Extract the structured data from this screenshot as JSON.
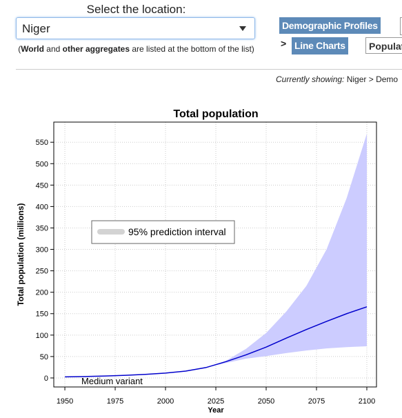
{
  "location_label": "Select the location:",
  "location_value": "Niger",
  "note": {
    "open": "(",
    "world": "World",
    "and": " and ",
    "others": "other aggregates",
    "rest": " are listed at the bottom of the list)"
  },
  "nav": {
    "demographic_profiles": "Demographic Profiles",
    "separator": ">",
    "line_charts": "Line Charts",
    "population": "Populat"
  },
  "status": {
    "label": "Currently showing:",
    "path": "Niger > Demo"
  },
  "chart_data": {
    "type": "line",
    "title": "Total population",
    "xlabel": "Year",
    "ylabel": "Total population (millions)",
    "xlim": [
      1944.5,
      2104.8
    ],
    "ylim": [
      -21,
      597
    ],
    "xticks": [
      1950,
      1975,
      2000,
      2025,
      2050,
      2075,
      2100
    ],
    "yticks": [
      0,
      50,
      100,
      150,
      200,
      250,
      300,
      350,
      400,
      450,
      500,
      550
    ],
    "grid": true,
    "legend_position": "center left",
    "series": [
      {
        "name": "Medium variant",
        "color": "#0000cc",
        "x": [
          1950,
          1960,
          1970,
          1980,
          1990,
          2000,
          2010,
          2020,
          2030,
          2040,
          2050,
          2060,
          2070,
          2080,
          2090,
          2100
        ],
        "values": [
          2.5,
          3.4,
          4.5,
          6.2,
          8.4,
          11.3,
          16.1,
          24.2,
          38,
          54,
          72,
          93,
          113,
          132,
          150,
          166
        ]
      }
    ],
    "interval": {
      "name": "95% prediction interval",
      "color": "#ccccff",
      "legend_color": "#d3d3d3",
      "x": [
        2020,
        2030,
        2040,
        2050,
        2060,
        2070,
        2080,
        2090,
        2100
      ],
      "lower": [
        24.2,
        35,
        45,
        51,
        58,
        64,
        69,
        72,
        74
      ],
      "upper": [
        24.2,
        40,
        68,
        105,
        155,
        215,
        300,
        420,
        570
      ]
    }
  }
}
